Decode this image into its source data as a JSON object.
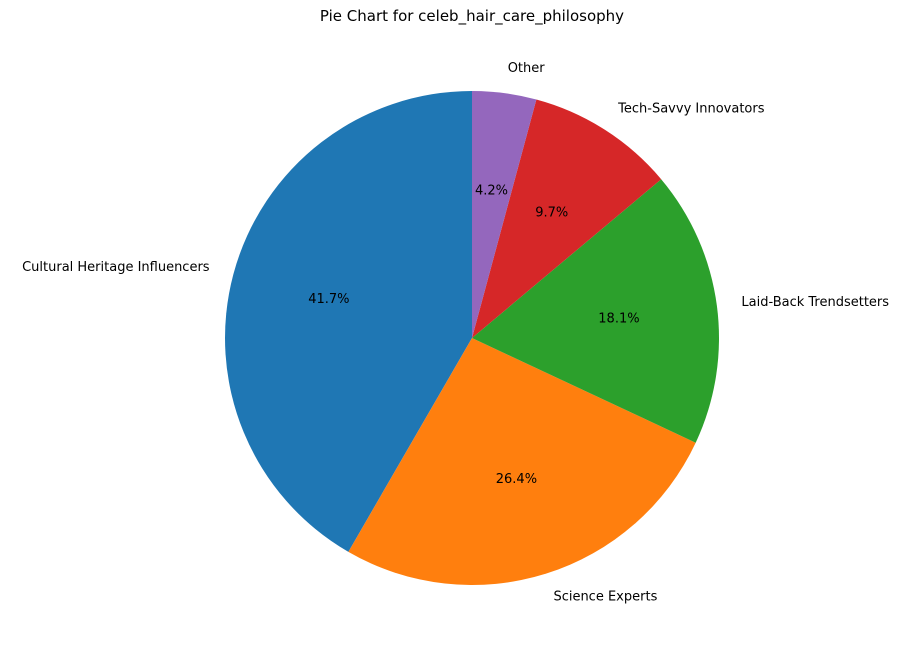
{
  "chart_data": {
    "type": "pie",
    "title": "Pie Chart for celeb_hair_care_philosophy",
    "categories": [
      "Cultural Heritage Influencers",
      "Science Experts",
      "Laid-Back Trendsetters",
      "Tech-Savvy Innovators",
      "Other"
    ],
    "values": [
      41.7,
      26.4,
      18.1,
      9.7,
      4.2
    ],
    "percent_labels": [
      "41.7%",
      "26.4%",
      "18.1%",
      "9.7%",
      "4.2%"
    ],
    "colors": [
      "#1f77b4",
      "#ff7f0e",
      "#2ca02c",
      "#d62728",
      "#9467bd"
    ],
    "start_angle_deg": 90,
    "direction": "counterclockwise",
    "legend": "none"
  }
}
